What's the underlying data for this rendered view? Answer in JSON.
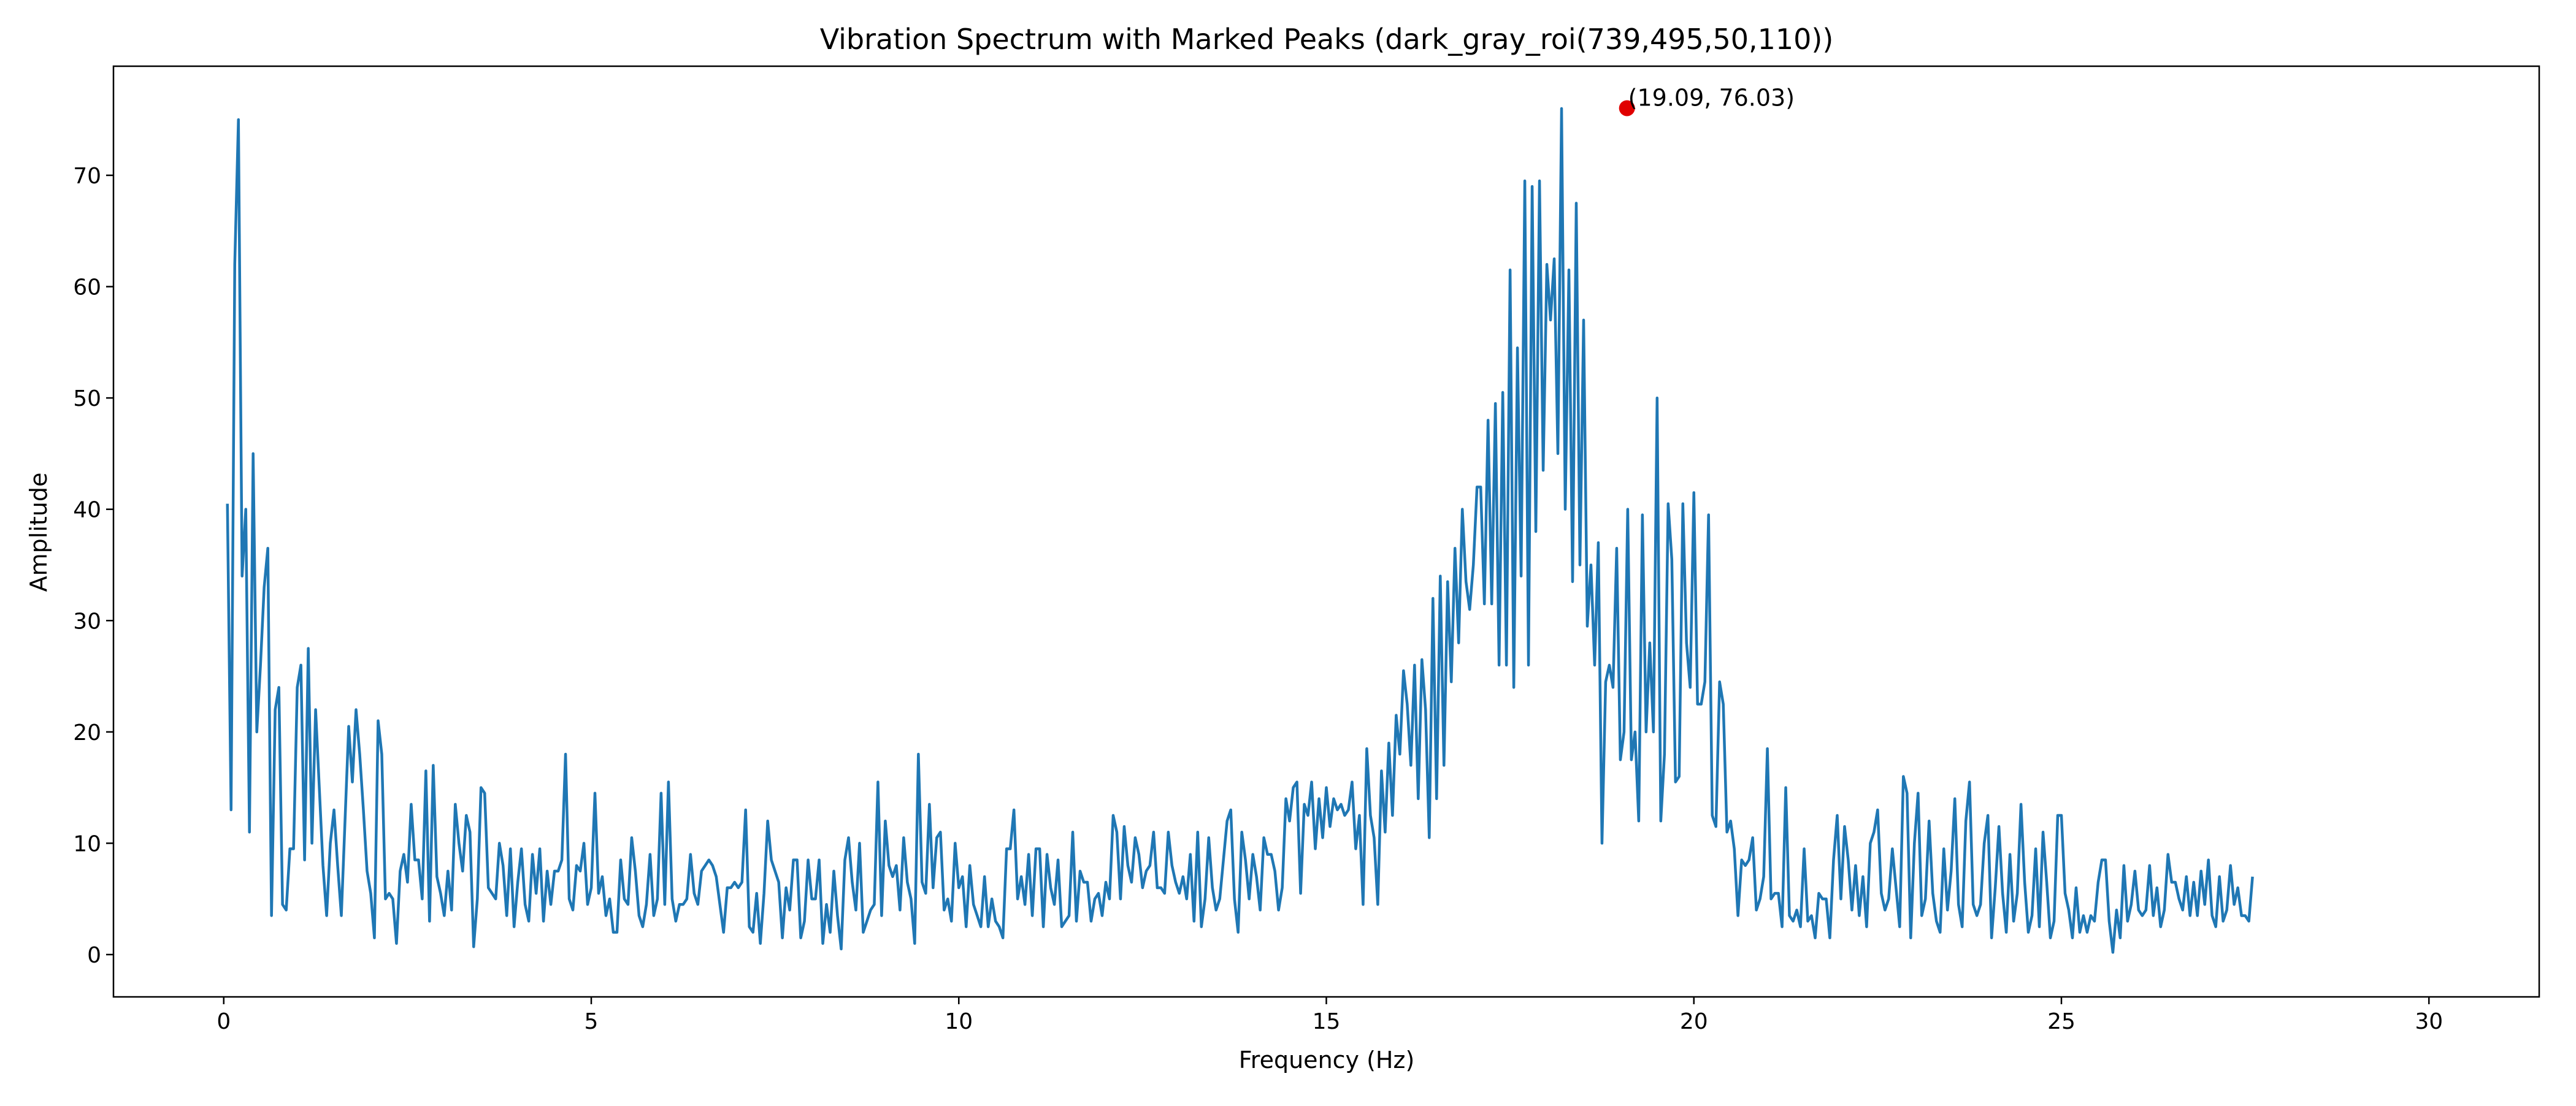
{
  "chart_data": {
    "type": "line",
    "title": "Vibration Spectrum with Marked Peaks (dark_gray_roi(739,495,50,110))",
    "xlabel": "Frequency (Hz)",
    "ylabel": "Amplitude",
    "xlim": [
      -1.5,
      31.5
    ],
    "ylim": [
      -3.8,
      79.8
    ],
    "x_ticks": [
      0,
      5,
      10,
      15,
      20,
      25,
      30
    ],
    "y_ticks": [
      0,
      10,
      20,
      30,
      40,
      50,
      60,
      70
    ],
    "grid": false,
    "line_color": "#1f77b4",
    "marker_color": "#e00000",
    "x_start": 0.05,
    "x_step": 0.05,
    "series": [
      {
        "values": [
          40.5,
          13,
          62,
          75,
          34,
          40,
          11,
          45,
          20,
          26,
          33,
          36.5,
          3.5,
          22,
          24,
          4.5,
          4,
          9.5,
          9.5,
          24,
          26,
          8.5,
          27.5,
          10,
          22,
          15,
          8,
          3.5,
          10,
          13,
          8,
          3.5,
          12,
          20.5,
          15.5,
          22,
          18,
          13,
          7.5,
          5.5,
          1.5,
          21,
          18,
          5,
          5.5,
          5,
          1,
          7.5,
          9,
          6.5,
          13.5,
          8.5,
          8.5,
          5,
          16.5,
          3,
          17,
          7,
          5.5,
          3.5,
          7.5,
          4,
          13.5,
          10,
          7.5,
          12.5,
          11,
          0.7,
          5,
          15,
          14.5,
          6,
          5.5,
          5,
          10,
          8,
          3.5,
          9.5,
          2.5,
          6.5,
          9.5,
          4.5,
          3,
          9,
          5.5,
          9.5,
          3,
          7.5,
          4.5,
          7.5,
          7.5,
          8.5,
          18,
          5,
          4,
          8,
          7.5,
          10,
          4.5,
          6,
          14.5,
          5.5,
          7,
          3.5,
          5,
          2,
          2,
          8.5,
          5,
          4.5,
          10.5,
          7.5,
          3.5,
          2.5,
          4.5,
          9,
          3.5,
          5,
          14.5,
          4.5,
          15.5,
          5,
          3,
          4.5,
          4.5,
          5,
          9,
          5.5,
          4.5,
          7.5,
          8,
          8.5,
          8,
          7,
          4.5,
          2,
          6,
          6,
          6.5,
          6,
          6.5,
          13,
          2.5,
          2,
          5.5,
          1,
          5.5,
          12,
          8.5,
          7.5,
          6.5,
          1.5,
          6,
          4,
          8.5,
          8.5,
          1.5,
          3,
          8.5,
          5,
          5,
          8.5,
          1,
          4.5,
          2,
          7.5,
          3.5,
          0.5,
          8.5,
          10.5,
          6.5,
          4,
          10,
          2,
          3,
          4,
          4.5,
          15.5,
          3.5,
          12,
          8,
          7,
          8,
          4,
          10.5,
          6.5,
          5,
          1,
          18,
          6.5,
          5.5,
          13.5,
          6,
          10.5,
          11,
          4,
          5,
          3,
          10,
          6,
          7,
          2.5,
          8,
          4.5,
          3.5,
          2.5,
          7,
          2.5,
          5,
          3,
          2.5,
          1.5,
          9.5,
          9.5,
          13,
          5,
          7,
          4.5,
          9,
          3.5,
          9.5,
          9.5,
          2.5,
          9,
          6,
          4.5,
          8.5,
          2.5,
          3,
          3.5,
          11,
          3,
          7.5,
          6.5,
          6.5,
          3,
          5,
          5.5,
          3.5,
          6.5,
          5,
          12.5,
          11,
          5,
          11.5,
          8,
          6.5,
          10.5,
          9,
          6,
          7.5,
          8,
          11,
          6,
          6,
          5.5,
          11,
          8,
          6.5,
          5.5,
          7,
          5,
          9,
          3,
          11,
          2.5,
          5,
          10.5,
          6,
          4,
          5,
          8.5,
          12,
          13,
          5,
          2,
          11,
          8.5,
          5,
          9,
          7,
          4,
          10.5,
          9,
          9,
          7.5,
          4,
          6,
          14,
          12,
          15,
          15.5,
          5.5,
          13.5,
          12.5,
          15.5,
          9.5,
          14,
          10.5,
          15,
          11.5,
          14,
          13,
          13.5,
          12.5,
          13,
          15.5,
          9.5,
          12.5,
          4.5,
          18.5,
          12.5,
          10.5,
          4.5,
          16.5,
          11,
          19,
          12.5,
          21.5,
          18,
          25.5,
          22.5,
          17,
          26,
          14,
          26.5,
          22,
          10.5,
          32,
          14,
          34,
          17,
          33.5,
          24.5,
          36.5,
          28,
          40,
          33.5,
          31,
          35,
          42,
          42,
          31.5,
          48,
          31.5,
          49.5,
          26,
          50.5,
          26,
          61.5,
          24,
          54.5,
          34,
          69.5,
          26,
          69,
          38,
          69.5,
          43.5,
          62,
          57,
          62.5,
          45,
          76,
          40,
          61.5,
          33.5,
          67.5,
          35,
          57,
          29.5,
          35,
          26,
          37,
          10,
          24.5,
          26,
          24,
          36.5,
          17.5,
          20,
          40,
          17.5,
          20,
          12,
          39.5,
          20,
          28,
          20,
          50,
          12,
          18,
          40.5,
          35.5,
          15.5,
          16,
          40.5,
          28,
          24,
          41.5,
          22.5,
          22.5,
          24.5,
          39.5,
          12.5,
          11.5,
          24.5,
          22.5,
          11,
          12,
          9.5,
          3.5,
          8.5,
          8,
          8.5,
          10.5,
          4,
          5,
          7,
          18.5,
          5,
          5.5,
          5.5,
          2.5,
          15,
          3.5,
          3,
          4,
          2.5,
          9.5,
          3,
          3.5,
          1.5,
          5.5,
          5,
          5,
          1.5,
          8.5,
          12.5,
          5,
          11.5,
          8.5,
          4,
          8,
          3.5,
          7,
          2.5,
          10,
          11,
          13,
          5.5,
          4,
          5,
          9.5,
          6,
          2.5,
          16,
          14.5,
          1.5,
          10,
          14.5,
          3.5,
          5,
          12,
          5.5,
          3,
          2,
          9.5,
          4,
          7.5,
          14,
          4.5,
          2.5,
          12,
          15.5,
          4.5,
          3.5,
          4.5,
          10,
          12.5,
          1.5,
          6,
          11.5,
          5.5,
          2,
          9,
          3,
          5.5,
          13.5,
          6.5,
          2,
          3.5,
          9.5,
          2.5,
          11,
          6.5,
          1.5,
          3,
          12.5,
          12.5,
          5.5,
          4,
          1.5,
          6,
          2,
          3.5,
          2,
          3.5,
          3,
          6.5,
          8.5,
          8.5,
          3,
          0.2,
          4,
          1.5,
          8,
          3,
          4.5,
          7.5,
          4,
          3.5,
          4,
          8,
          3.5,
          6,
          2.5,
          4,
          9,
          6.5,
          6.5,
          5,
          4,
          7,
          3.5,
          6.5,
          3.5,
          7.5,
          4.5,
          8.5,
          3.5,
          2.5,
          7,
          3,
          4,
          8,
          4.5,
          6,
          3.5,
          3.5,
          3,
          7
        ]
      }
    ],
    "peak": {
      "x": 19.09,
      "y": 76.03,
      "label": "(19.09, 76.03)"
    }
  }
}
